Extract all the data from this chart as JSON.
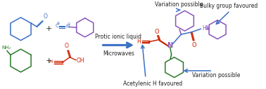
{
  "bg_color": "#ffffff",
  "blue": "#3a6fc4",
  "purple": "#8855bb",
  "green": "#2a7a2a",
  "red": "#cc2200",
  "black": "#222222",
  "figsize": [
    3.78,
    1.27
  ],
  "dpi": 100,
  "labels": {
    "protic": "Protic ionic liquid",
    "micro": "Microwaves",
    "var1": "Variation possible",
    "bulky": "Bulky group favoured",
    "acetyl": "Acetylenic H favoured",
    "var2": "Variation possible"
  }
}
